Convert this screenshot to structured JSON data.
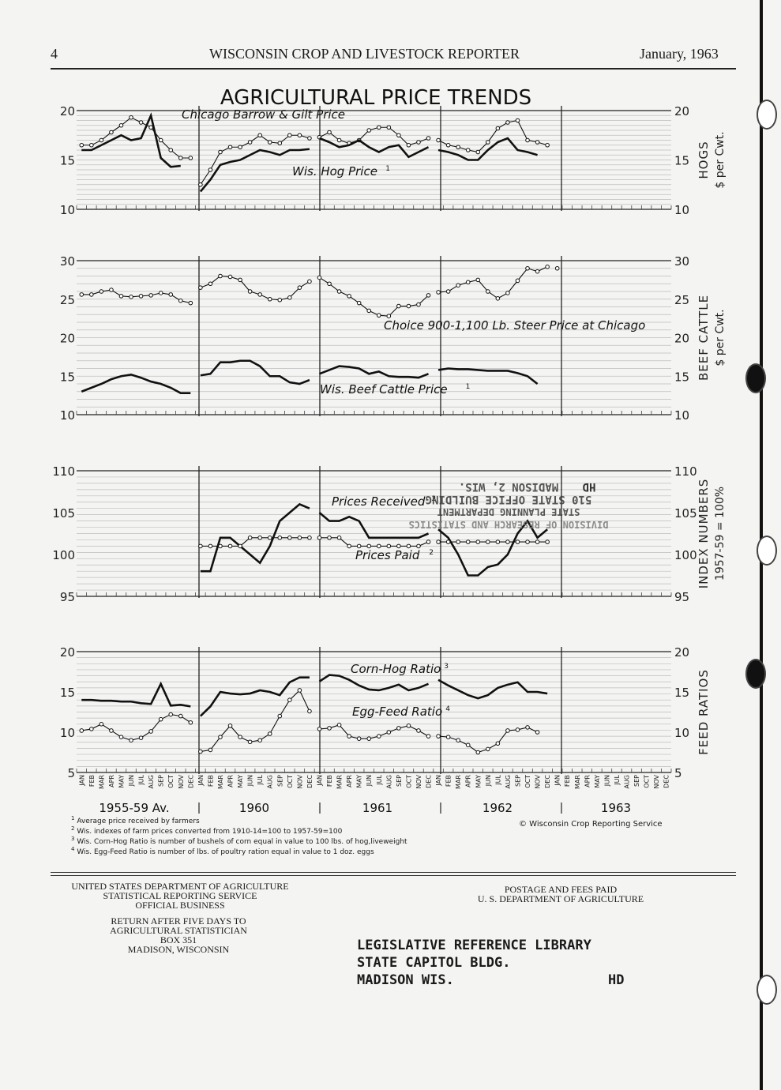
{
  "header": {
    "page_number": "4",
    "publication": "WISCONSIN CROP AND LIVESTOCK REPORTER",
    "date": "January, 1963"
  },
  "chart_data": {
    "type": "line",
    "title": "AGRICULTURAL PRICE TRENDS",
    "x_axis": {
      "months": [
        "JAN",
        "FEB",
        "MAR",
        "APR",
        "MAY",
        "JUN",
        "JUL",
        "AUG",
        "SEP",
        "OCT",
        "NOV",
        "DEC"
      ],
      "periods": [
        "1955-59 Av.",
        "1960",
        "1961",
        "1962",
        "1963"
      ]
    },
    "panels": [
      {
        "id": "hogs",
        "ylabel": "HOGS",
        "unit": "$ per Cwt.",
        "ylim": [
          10,
          20
        ],
        "ticks": [
          "10",
          "15",
          "20"
        ],
        "series": [
          {
            "name": "Chicago Barrow & Gilt Price",
            "style": "open-circles",
            "values": [
              16.5,
              16.5,
              17.0,
              17.8,
              18.5,
              19.3,
              18.8,
              18.3,
              17.0,
              16.0,
              15.2,
              15.2,
              12.5,
              14.0,
              15.8,
              16.3,
              16.3,
              16.8,
              17.5,
              16.8,
              16.7,
              17.5,
              17.5,
              17.2,
              17.3,
              17.8,
              17.0,
              16.7,
              17.0,
              18.0,
              18.3,
              18.3,
              17.5,
              16.5,
              16.8,
              17.2,
              17.0,
              16.5,
              16.3,
              16.0,
              15.8,
              16.8,
              18.2,
              18.8,
              19.0,
              17.0,
              16.8,
              16.5
            ]
          },
          {
            "name": "Wis. Hog Price",
            "footnote": "1",
            "style": "solid",
            "values": [
              16.0,
              16.0,
              16.5,
              17.0,
              17.5,
              17.0,
              17.2,
              19.5,
              15.2,
              14.3,
              14.4,
              null,
              11.8,
              13.0,
              14.5,
              14.8,
              15.0,
              15.5,
              16.0,
              15.8,
              15.5,
              16.0,
              16.0,
              16.1,
              17.2,
              16.8,
              16.3,
              16.5,
              17.0,
              16.3,
              15.8,
              16.3,
              16.5,
              15.3,
              15.8,
              16.3,
              16.0,
              15.8,
              15.5,
              15.0,
              15.0,
              16.0,
              16.8,
              17.2,
              16.0,
              15.8,
              15.5,
              null
            ]
          }
        ]
      },
      {
        "id": "beef",
        "ylabel": "BEEF CATTLE",
        "unit": "$ per Cwt.",
        "ylim": [
          10,
          30
        ],
        "ticks": [
          "10",
          "15",
          "20",
          "25",
          "30"
        ],
        "series": [
          {
            "name": "Choice 900-1,100 Lb. Steer Price at Chicago",
            "style": "open-circles",
            "values": [
              25.6,
              25.6,
              26.0,
              26.2,
              25.4,
              25.3,
              25.4,
              25.5,
              25.8,
              25.6,
              24.8,
              24.5,
              26.5,
              27.0,
              28.0,
              27.9,
              27.5,
              26.0,
              25.6,
              25.0,
              24.9,
              25.2,
              26.5,
              27.3,
              27.8,
              27.0,
              26.0,
              25.4,
              24.5,
              23.5,
              22.9,
              22.8,
              24.1,
              24.1,
              24.3,
              25.5,
              25.9,
              26.0,
              26.8,
              27.2,
              27.5,
              26.0,
              25.1,
              25.8,
              27.4,
              29.0,
              28.6,
              29.2,
              29.0
            ]
          },
          {
            "name": "Wis. Beef Cattle Price",
            "footnote": "1",
            "style": "solid",
            "values": [
              13.0,
              13.5,
              14.0,
              14.6,
              15.0,
              15.2,
              14.8,
              14.3,
              14.0,
              13.5,
              12.8,
              12.8,
              15.1,
              15.3,
              16.8,
              16.8,
              17.0,
              17.0,
              16.3,
              15.0,
              15.0,
              14.2,
              14.0,
              14.5,
              15.3,
              15.8,
              16.3,
              16.2,
              16.0,
              15.3,
              15.6,
              15.0,
              14.9,
              14.9,
              14.8,
              15.3,
              15.8,
              16.0,
              15.9,
              15.9,
              15.8,
              15.7,
              15.7,
              15.7,
              15.4,
              15.0,
              14.0,
              null
            ]
          }
        ]
      },
      {
        "id": "index",
        "ylabel": "INDEX NUMBERS",
        "unit": "1957-59 = 100%",
        "ylim": [
          95,
          110
        ],
        "ticks": [
          "95",
          "100",
          "105",
          "110"
        ],
        "series": [
          {
            "name": "Prices Received",
            "footnote": "2",
            "style": "solid",
            "values": [
              null,
              null,
              null,
              null,
              null,
              null,
              null,
              null,
              null,
              null,
              null,
              null,
              98.0,
              98.0,
              102.0,
              102.0,
              101.0,
              100.0,
              99.0,
              101.0,
              104.0,
              105.0,
              106.0,
              105.5,
              105.0,
              104.0,
              104.0,
              104.5,
              104.0,
              102.0,
              102.0,
              102.0,
              102.0,
              102.0,
              102.0,
              102.5,
              103.0,
              102.0,
              100.0,
              97.5,
              97.5,
              98.5,
              98.8,
              100.0,
              102.5,
              104.0,
              102.0,
              103.0
            ]
          },
          {
            "name": "Prices Paid",
            "footnote": "2",
            "style": "open-circles",
            "values": [
              null,
              null,
              null,
              null,
              null,
              null,
              null,
              null,
              null,
              null,
              null,
              null,
              101.0,
              101.0,
              101.0,
              101.0,
              101.0,
              102.0,
              102.0,
              102.0,
              102.0,
              102.0,
              102.0,
              102.0,
              102.0,
              102.0,
              102.0,
              101.0,
              101.0,
              101.0,
              101.0,
              101.0,
              101.0,
              101.0,
              101.0,
              101.5,
              101.5,
              101.5,
              101.5,
              101.5,
              101.5,
              101.5,
              101.5,
              101.5,
              101.5,
              101.5,
              101.5,
              101.5
            ]
          }
        ]
      },
      {
        "id": "feed",
        "ylabel": "FEED RATIOS",
        "unit": "",
        "ylim": [
          5,
          20
        ],
        "ticks": [
          "5",
          "10",
          "15",
          "20"
        ],
        "series": [
          {
            "name": "Corn-Hog Ratio",
            "footnote": "3",
            "style": "solid",
            "values": [
              14.0,
              14.0,
              13.9,
              13.9,
              13.8,
              13.8,
              13.6,
              13.5,
              16.0,
              13.3,
              13.4,
              13.2,
              12.0,
              13.2,
              15.0,
              14.8,
              14.7,
              14.8,
              15.2,
              15.0,
              14.6,
              16.2,
              16.8,
              16.8,
              16.3,
              17.1,
              17.0,
              16.5,
              15.8,
              15.3,
              15.2,
              15.5,
              15.9,
              15.2,
              15.5,
              16.0,
              16.5,
              15.8,
              15.2,
              14.6,
              14.2,
              14.6,
              15.5,
              15.9,
              16.2,
              15.0,
              15.0,
              14.8
            ]
          },
          {
            "name": "Egg-Feed Ratio",
            "footnote": "4",
            "style": "open-circles",
            "values": [
              10.2,
              10.4,
              11.0,
              10.2,
              9.4,
              9.0,
              9.3,
              10.1,
              11.6,
              12.2,
              12.0,
              11.2,
              7.6,
              7.8,
              9.4,
              10.8,
              9.4,
              8.8,
              9.0,
              9.8,
              12.0,
              14.0,
              15.2,
              12.6,
              10.4,
              10.5,
              10.9,
              9.5,
              9.2,
              9.2,
              9.5,
              10.0,
              10.5,
              10.8,
              10.2,
              9.5,
              9.5,
              9.4,
              9.0,
              8.4,
              7.5,
              7.9,
              8.6,
              10.2,
              10.3,
              10.6,
              10.0,
              null
            ]
          }
        ]
      }
    ],
    "footnotes": [
      {
        "mark": "1",
        "text": "Average price received by farmers"
      },
      {
        "mark": "2",
        "text": "Wis. indexes of farm prices converted from 1910-14=100 to 1957-59=100"
      },
      {
        "mark": "3",
        "text": "Wis. Corn-Hog Ratio is number of bushels of corn equal in value to 100 lbs. of hog,liveweight"
      },
      {
        "mark": "4",
        "text": "Wis. Egg-Feed Ratio is number of lbs. of poultry ration equal in value to 1 doz. eggs"
      }
    ],
    "copyright": "© Wisconsin Crop Reporting Service"
  },
  "stamp": {
    "lines": [
      "MADISON 2, WIS.",
      "510 STATE OFFICE BUILDING",
      "STATE PLANNING DEPARTMENT",
      "DIVISION OF RESEARCH AND STATISTICS"
    ],
    "initials": "HD"
  },
  "footer": {
    "sender_line1": "UNITED STATES DEPARTMENT OF AGRICULTURE",
    "sender_line2": "STATISTICAL REPORTING SERVICE",
    "sender_line3": "OFFICIAL BUSINESS",
    "postage_line1": "POSTAGE AND FEES PAID",
    "postage_line2": "U. S. DEPARTMENT OF AGRICULTURE",
    "return_line1": "RETURN AFTER FIVE DAYS TO",
    "return_line2": "AGRICULTURAL STATISTICIAN",
    "return_line3": "BOX 351",
    "return_line4": "MADISON, WISCONSIN",
    "address_line1": "LEGISLATIVE REFERENCE LIBRARY",
    "address_line2": "STATE CAPITOL BLDG.",
    "address_line3": "MADISON WIS.",
    "address_initials": "HD"
  }
}
